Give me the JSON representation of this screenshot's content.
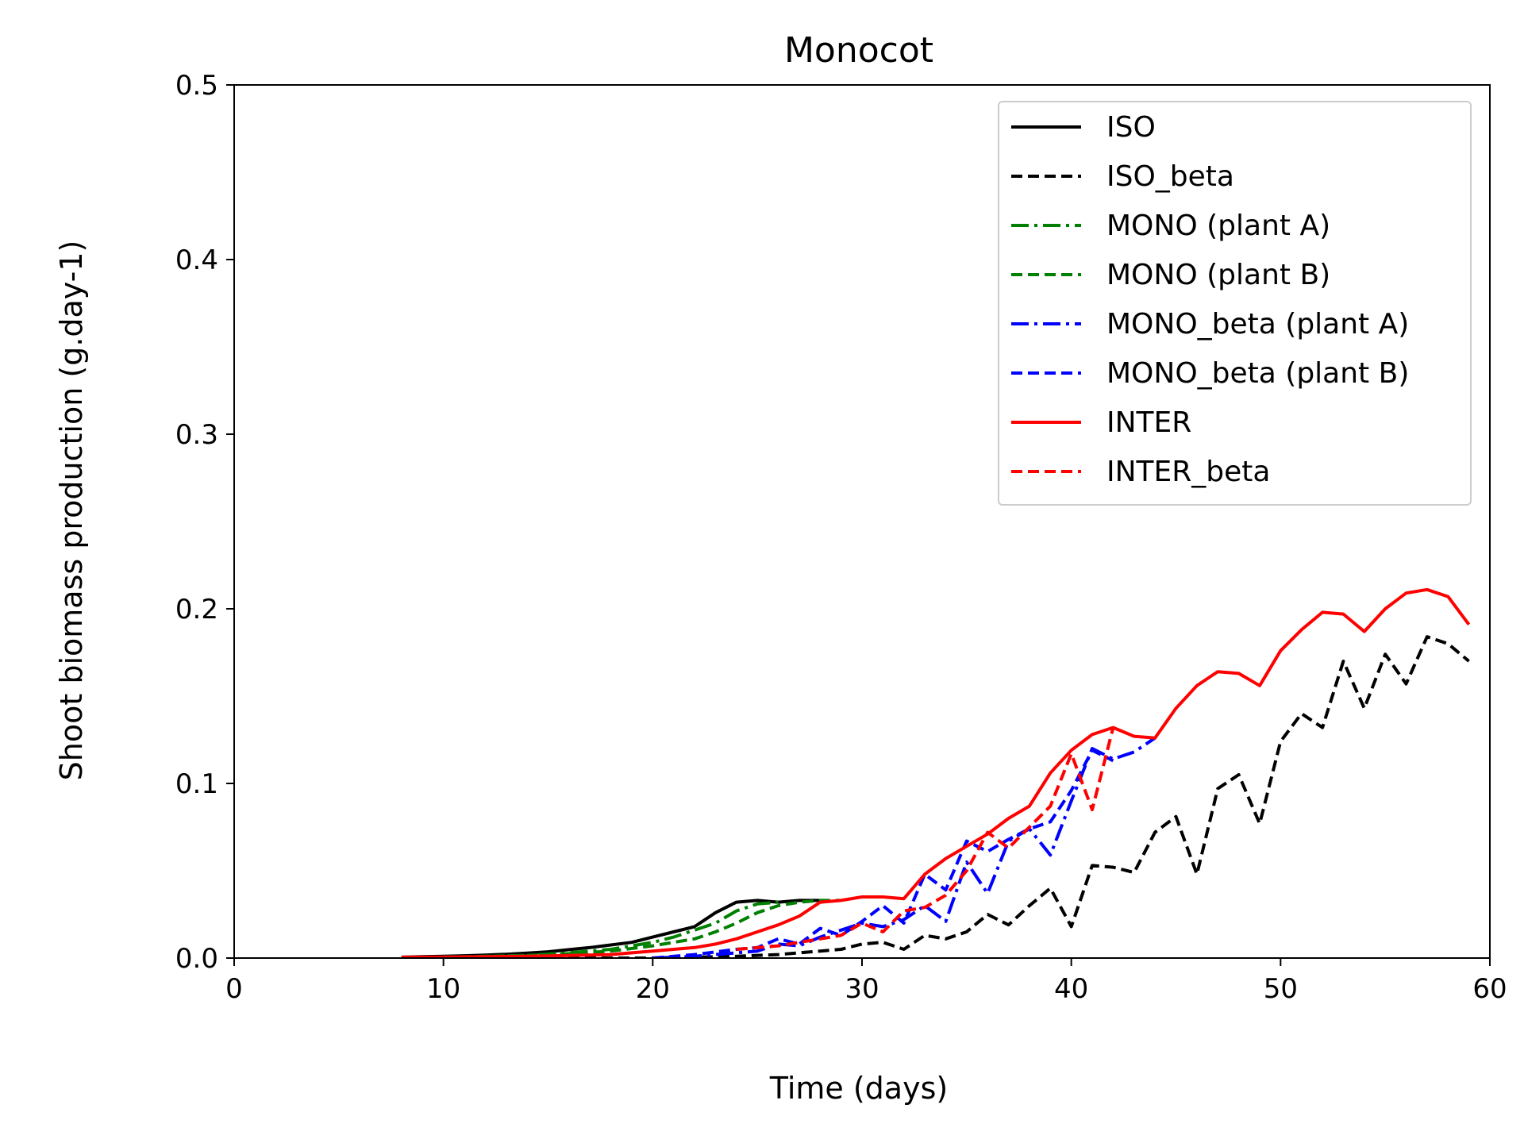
{
  "chart_data": {
    "type": "line",
    "title": "Monocot",
    "xlabel": "Time (days)",
    "ylabel": "Shoot biomass production (g.day-1)",
    "xlim": [
      0,
      60
    ],
    "ylim": [
      0,
      0.5
    ],
    "xticks": [
      0,
      10,
      20,
      30,
      40,
      50,
      60
    ],
    "yticks": [
      0.0,
      0.1,
      0.2,
      0.3,
      0.4,
      0.5
    ],
    "xtick_labels": [
      "0",
      "10",
      "20",
      "30",
      "40",
      "50",
      "60"
    ],
    "ytick_labels": [
      "0.0",
      "0.1",
      "0.2",
      "0.3",
      "0.4",
      "0.5"
    ],
    "grid": false,
    "legend_position": "top-right",
    "series": [
      {
        "name": "ISO",
        "color": "#000000",
        "dash": "solid",
        "x": [
          8,
          9,
          10,
          11,
          12,
          13,
          14,
          15,
          16,
          17,
          18,
          19,
          20,
          21,
          22,
          23,
          24,
          25,
          26,
          27,
          28
        ],
        "y": [
          0.0005,
          0.0008,
          0.001,
          0.0013,
          0.0017,
          0.0022,
          0.0028,
          0.0036,
          0.0048,
          0.006,
          0.0075,
          0.009,
          0.012,
          0.015,
          0.018,
          0.026,
          0.032,
          0.033,
          0.032,
          0.033,
          0.033
        ]
      },
      {
        "name": "ISO_beta",
        "color": "#000000",
        "dash": "dashed",
        "x": [
          8,
          10,
          12,
          14,
          16,
          18,
          20,
          22,
          24,
          26,
          27,
          28,
          29,
          30,
          31,
          32,
          33,
          34,
          35,
          36,
          37,
          38,
          39,
          40,
          41,
          42,
          43,
          44,
          45,
          46,
          47,
          48,
          49,
          50,
          51,
          52,
          53,
          54,
          55,
          56,
          57,
          58,
          59
        ],
        "y": [
          0,
          0,
          0,
          0,
          0,
          0,
          0,
          0.0005,
          0.001,
          0.002,
          0.003,
          0.004,
          0.005,
          0.008,
          0.009,
          0.005,
          0.013,
          0.011,
          0.015,
          0.025,
          0.019,
          0.03,
          0.04,
          0.018,
          0.053,
          0.052,
          0.049,
          0.072,
          0.081,
          0.048,
          0.097,
          0.105,
          0.077,
          0.124,
          0.14,
          0.132,
          0.17,
          0.143,
          0.174,
          0.157,
          0.184,
          0.18,
          0.17
        ]
      },
      {
        "name": "MONO (plant A)",
        "color": "#008000",
        "dash": "dashdot",
        "x": [
          10,
          12,
          14,
          16,
          18,
          20,
          21,
          22,
          23,
          24,
          25,
          26
        ],
        "y": [
          0.0005,
          0.001,
          0.0015,
          0.003,
          0.005,
          0.009,
          0.012,
          0.016,
          0.02,
          0.027,
          0.031,
          0.032
        ]
      },
      {
        "name": "MONO (plant B)",
        "color": "#008000",
        "dash": "dashed",
        "x": [
          10,
          12,
          14,
          16,
          18,
          20,
          21,
          22,
          23,
          24,
          25,
          26,
          27,
          28,
          29
        ],
        "y": [
          0.0005,
          0.001,
          0.0015,
          0.0025,
          0.004,
          0.007,
          0.009,
          0.011,
          0.015,
          0.02,
          0.026,
          0.03,
          0.032,
          0.033,
          0.033
        ]
      },
      {
        "name": "MONO_beta (plant A)",
        "color": "#0000ff",
        "dash": "dashdot",
        "x": [
          20,
          22,
          24,
          25,
          26,
          27,
          28,
          29,
          30,
          31,
          32,
          33,
          34,
          35,
          36,
          37,
          38,
          39,
          40,
          41,
          42,
          43,
          44
        ],
        "y": [
          0,
          0.001,
          0.003,
          0.004,
          0.008,
          0.007,
          0.012,
          0.016,
          0.02,
          0.018,
          0.022,
          0.03,
          0.021,
          0.055,
          0.037,
          0.067,
          0.074,
          0.059,
          0.09,
          0.12,
          0.114,
          0.118,
          0.126
        ]
      },
      {
        "name": "MONO_beta (plant B)",
        "color": "#0000ff",
        "dash": "dashed",
        "x": [
          20,
          22,
          24,
          25,
          26,
          27,
          28,
          29,
          30,
          31,
          32,
          33,
          34,
          35,
          36,
          37,
          38,
          39,
          40,
          41,
          42
        ],
        "y": [
          0,
          0.002,
          0.005,
          0.006,
          0.011,
          0.008,
          0.017,
          0.013,
          0.021,
          0.03,
          0.02,
          0.048,
          0.039,
          0.067,
          0.061,
          0.068,
          0.074,
          0.078,
          0.096,
          0.119,
          0.113
        ]
      },
      {
        "name": "INTER",
        "color": "#ff0000",
        "dash": "solid",
        "x": [
          8,
          10,
          12,
          14,
          16,
          18,
          19,
          20,
          21,
          22,
          23,
          24,
          25,
          26,
          27,
          28,
          29,
          30,
          31,
          32,
          33,
          34,
          35,
          36,
          37,
          38,
          39,
          40,
          41,
          42,
          43,
          44,
          45,
          46,
          47,
          48,
          49,
          50,
          51,
          52,
          53,
          54,
          55,
          56,
          57,
          58,
          59
        ],
        "y": [
          0.0005,
          0.0006,
          0.0008,
          0.001,
          0.0015,
          0.002,
          0.003,
          0.004,
          0.005,
          0.006,
          0.008,
          0.011,
          0.015,
          0.019,
          0.024,
          0.032,
          0.033,
          0.035,
          0.035,
          0.034,
          0.048,
          0.057,
          0.064,
          0.071,
          0.08,
          0.087,
          0.106,
          0.119,
          0.128,
          0.132,
          0.127,
          0.126,
          0.143,
          0.156,
          0.164,
          0.163,
          0.156,
          0.176,
          0.188,
          0.198,
          0.197,
          0.187,
          0.2,
          0.209,
          0.211,
          0.207,
          0.191
        ]
      },
      {
        "name": "INTER_beta",
        "color": "#ff0000",
        "dash": "dashed",
        "x": [
          24,
          26,
          27,
          28,
          29,
          30,
          31,
          32,
          33,
          34,
          35,
          36,
          37,
          38,
          39,
          40,
          41,
          42
        ],
        "y": [
          0.005,
          0.007,
          0.009,
          0.011,
          0.013,
          0.02,
          0.015,
          0.027,
          0.029,
          0.036,
          0.05,
          0.072,
          0.063,
          0.075,
          0.087,
          0.117,
          0.085,
          0.132
        ]
      }
    ]
  }
}
